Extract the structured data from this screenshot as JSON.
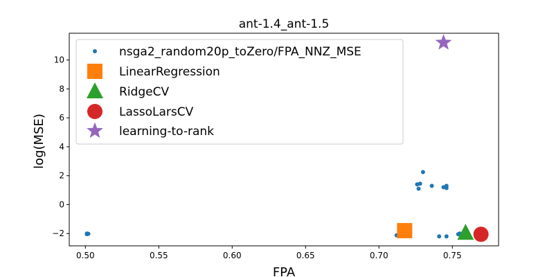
{
  "chart_data": {
    "type": "scatter",
    "title": "ant-1.4_ant-1.5",
    "xlabel": "FPA",
    "ylabel": "log(MSE)",
    "xlim": [
      0.489,
      0.7815
    ],
    "ylim": [
      -2.85,
      11.85
    ],
    "xticks": [
      0.5,
      0.55,
      0.6,
      0.65,
      0.7,
      0.75
    ],
    "xtick_labels": [
      "0.50",
      "0.55",
      "0.60",
      "0.65",
      "0.70",
      "0.75"
    ],
    "yticks": [
      -2,
      0,
      2,
      4,
      6,
      8,
      10
    ],
    "ytick_labels": [
      "−2",
      "0",
      "2",
      "4",
      "6",
      "8",
      "10"
    ],
    "grid": false,
    "legend_position": "upper-left",
    "series": [
      {
        "name": "nsga2_random20p_toZero/FPA_NNZ_MSE",
        "marker": "dot",
        "color": "#1f77b4",
        "points": [
          {
            "x": 0.501,
            "y": -2.0
          },
          {
            "x": 0.502,
            "y": -2.02
          },
          {
            "x": 0.501,
            "y": -2.04
          },
          {
            "x": 0.712,
            "y": -2.12
          },
          {
            "x": 0.726,
            "y": 1.4
          },
          {
            "x": 0.727,
            "y": 1.1
          },
          {
            "x": 0.728,
            "y": 1.45
          },
          {
            "x": 0.73,
            "y": 2.25
          },
          {
            "x": 0.736,
            "y": 1.3
          },
          {
            "x": 0.741,
            "y": -2.2
          },
          {
            "x": 0.744,
            "y": 1.2
          },
          {
            "x": 0.746,
            "y": 1.15
          },
          {
            "x": 0.746,
            "y": 1.3
          },
          {
            "x": 0.746,
            "y": -2.2
          },
          {
            "x": 0.754,
            "y": -2.05
          },
          {
            "x": 0.755,
            "y": -2.0
          },
          {
            "x": 0.757,
            "y": -2.1
          }
        ]
      },
      {
        "name": "LinearRegression",
        "marker": "square",
        "color": "#ff7f0e",
        "points": [
          {
            "x": 0.7175,
            "y": -1.8
          }
        ]
      },
      {
        "name": "RidgeCV",
        "marker": "triangle",
        "color": "#2ca02c",
        "points": [
          {
            "x": 0.759,
            "y": -1.95
          }
        ]
      },
      {
        "name": "LassoLarsCV",
        "marker": "circle",
        "color": "#d62728",
        "points": [
          {
            "x": 0.7695,
            "y": -2.05
          }
        ]
      },
      {
        "name": "learning-to-rank",
        "marker": "star",
        "color": "#9467bd",
        "points": [
          {
            "x": 0.744,
            "y": 11.2
          }
        ]
      }
    ]
  }
}
